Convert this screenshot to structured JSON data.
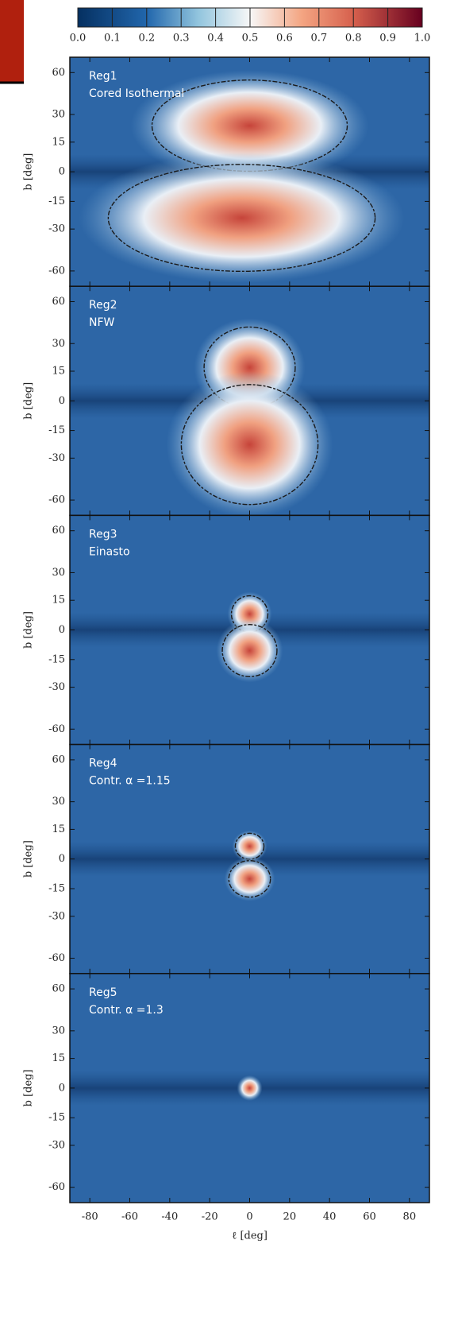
{
  "chart_data": {
    "type": "heatmap",
    "xlabel": "ℓ [deg]",
    "ylabel": "b [deg]",
    "xlim": [
      -90,
      90
    ],
    "xticks": [
      -80,
      -60,
      -40,
      -20,
      0,
      20,
      40,
      60,
      80
    ],
    "ylim": [
      -90,
      90
    ],
    "yscale": "sin",
    "yticks": [
      60,
      30,
      15,
      0,
      -15,
      -30,
      -60
    ],
    "colormap": "RdBu_r",
    "colorbar": {
      "lim": [
        0,
        1
      ],
      "ticks": [
        {
          "value": 0,
          "label": "0.0"
        },
        0.1,
        0.2,
        0.3,
        0.4,
        0.5,
        0.6,
        0.7,
        0.8,
        0.9,
        {
          "value": 1,
          "label": "1.0"
        }
      ]
    },
    "panels": [
      {
        "labels": [
          "Reg1",
          "Cored Isothermal"
        ]
      },
      {
        "labels": [
          "Reg2",
          "NFW"
        ]
      },
      {
        "labels": [
          "Reg3",
          "Einasto"
        ]
      },
      {
        "labels": [
          "Reg4",
          "Contr. α =1.15"
        ]
      },
      {
        "labels": [
          "Reg5",
          "Contr. α =1.3"
        ]
      }
    ]
  }
}
